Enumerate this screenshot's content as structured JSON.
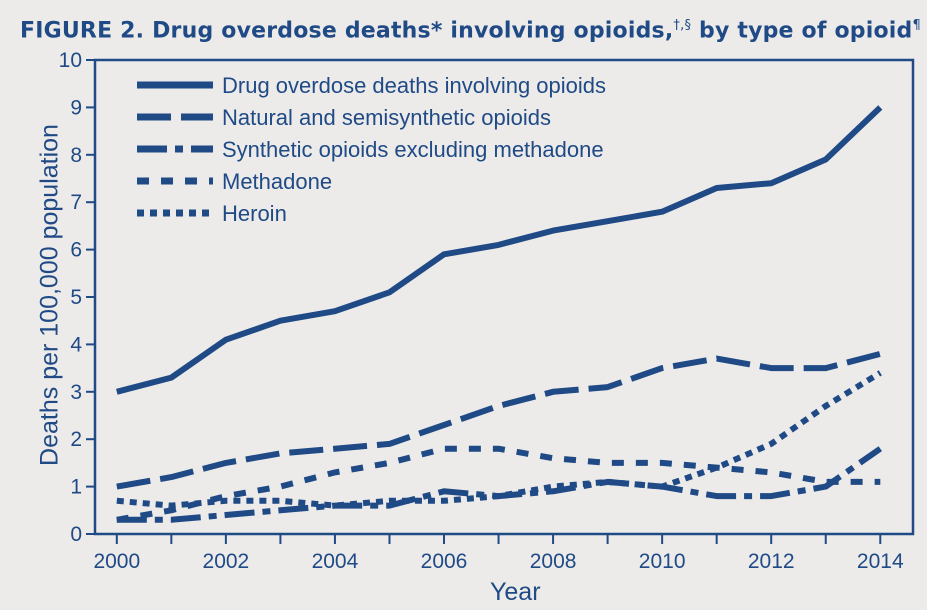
{
  "figure": {
    "title_main": "FIGURE 2. Drug overdose deaths* involving opioids,",
    "title_sup1": "†,§",
    "title_mid": " by type of opioid",
    "title_sup2": "¶",
    "title_tail": " –"
  },
  "chart_data": {
    "type": "line",
    "title": "FIGURE 2. Drug overdose deaths* involving opioids,†,§ by type of opioid¶ –",
    "xlabel": "Year",
    "ylabel": "Deaths per 100,000 population",
    "xlim": [
      1999.6,
      2014.6
    ],
    "ylim": [
      0,
      10
    ],
    "x": [
      2000,
      2001,
      2002,
      2003,
      2004,
      2005,
      2006,
      2007,
      2008,
      2009,
      2010,
      2011,
      2012,
      2013,
      2014
    ],
    "x_tick_labels": [
      "2000",
      "2002",
      "2004",
      "2006",
      "2008",
      "2010",
      "2012",
      "2014"
    ],
    "y_ticks": [
      0,
      1,
      2,
      3,
      4,
      5,
      6,
      7,
      8,
      9,
      10
    ],
    "grid": false,
    "legend_position": "top-left",
    "color": "#1f4a86",
    "series": [
      {
        "name": "Drug overdose deaths involving opioids",
        "style": "solid",
        "values": [
          3.0,
          3.3,
          4.1,
          4.5,
          4.7,
          5.1,
          5.9,
          6.1,
          6.4,
          6.6,
          6.8,
          7.3,
          7.4,
          7.9,
          9.0
        ]
      },
      {
        "name": "Natural and semisynthetic opioids",
        "style": "long-dash",
        "values": [
          1.0,
          1.2,
          1.5,
          1.7,
          1.8,
          1.9,
          2.3,
          2.7,
          3.0,
          3.1,
          3.5,
          3.7,
          3.5,
          3.5,
          3.8
        ]
      },
      {
        "name": "Synthetic opioids excluding methadone",
        "style": "dash-dot",
        "values": [
          0.3,
          0.3,
          0.4,
          0.5,
          0.6,
          0.6,
          0.9,
          0.8,
          0.9,
          1.1,
          1.0,
          0.8,
          0.8,
          1.0,
          1.8
        ]
      },
      {
        "name": "Methadone",
        "style": "dash",
        "values": [
          0.3,
          0.5,
          0.8,
          1.0,
          1.3,
          1.5,
          1.8,
          1.8,
          1.6,
          1.5,
          1.5,
          1.4,
          1.3,
          1.1,
          1.1
        ]
      },
      {
        "name": "Heroin",
        "style": "dot",
        "values": [
          0.7,
          0.6,
          0.7,
          0.7,
          0.6,
          0.7,
          0.7,
          0.8,
          1.0,
          1.1,
          1.0,
          1.4,
          1.9,
          2.7,
          3.4
        ]
      }
    ]
  }
}
